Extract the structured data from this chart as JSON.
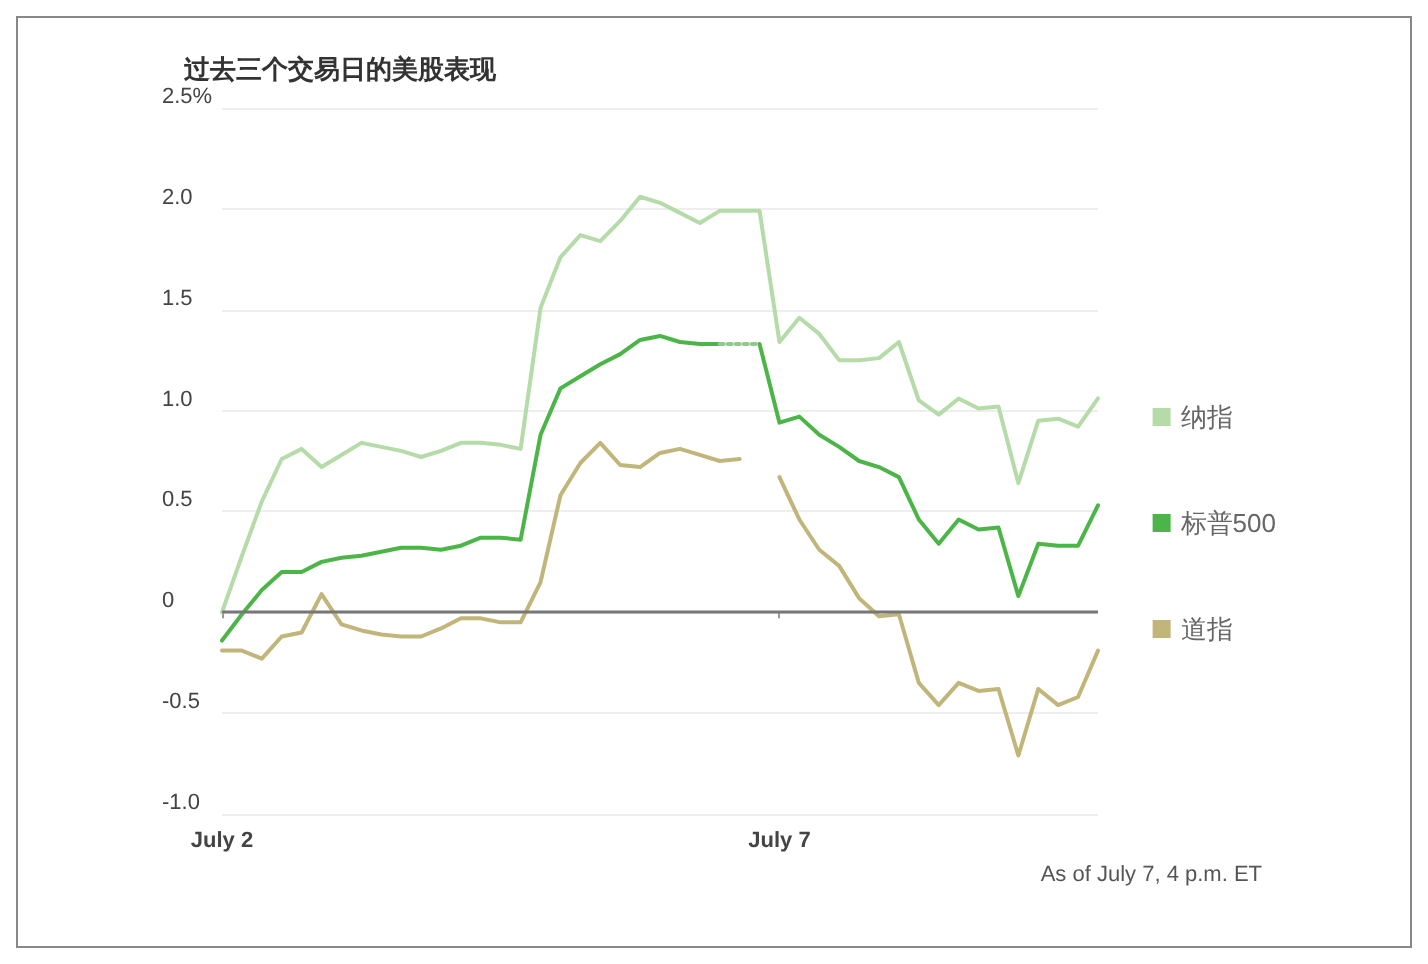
{
  "chart_data": {
    "type": "line",
    "title": "过去三个交易日的美股表现",
    "annotations": [
      "As of July 7, 4 p.m. ET"
    ],
    "categories": [
      "July 2",
      null,
      null,
      null,
      null,
      null,
      null,
      null,
      null,
      null,
      null,
      null,
      null,
      null,
      null,
      null,
      null,
      null,
      null,
      null,
      null,
      null,
      null,
      null,
      null,
      null,
      null,
      null,
      "July 7",
      null,
      null,
      null,
      null,
      null,
      null,
      null,
      null,
      null,
      null,
      null,
      null,
      null,
      null,
      null,
      null
    ],
    "ylim": [
      -1.0,
      2.5
    ],
    "yticks": [
      {
        "value": 2.5,
        "label": "2.5%"
      },
      {
        "value": 2.0,
        "label": "2.0"
      },
      {
        "value": 1.5,
        "label": "1.5"
      },
      {
        "value": 1.0,
        "label": "1.0"
      },
      {
        "value": 0.5,
        "label": "0.5"
      },
      {
        "value": 0,
        "label": "0"
      },
      {
        "value": -0.5,
        "label": "-0.5"
      },
      {
        "value": -1.0,
        "label": "-1.0"
      }
    ],
    "grid": "y",
    "legend": "right",
    "marker": "none",
    "line_style": "solid",
    "ref_lines": [
      {
        "axis": "y",
        "value": 0,
        "label": null,
        "color": "#777777"
      }
    ],
    "series": [
      {
        "name": "纳指",
        "color": "#b5dba8",
        "values": [
          0,
          0.28,
          0.55,
          0.76,
          0.81,
          0.72,
          0.78,
          0.84,
          0.82,
          0.8,
          0.77,
          0.8,
          0.84,
          0.84,
          0.83,
          0.81,
          1.51,
          1.76,
          1.87,
          1.84,
          1.94,
          2.06,
          2.03,
          1.98,
          1.93,
          1.99,
          1.99,
          1.99,
          1.34,
          1.46,
          1.38,
          1.25,
          1.25,
          1.26,
          1.34,
          1.05,
          0.98,
          1.06,
          1.01,
          1.02,
          0.64,
          0.95,
          0.96,
          0.92,
          1.06
        ]
      },
      {
        "name": "标普500",
        "color": "#4cb548",
        "values": [
          -0.14,
          -0.01,
          0.11,
          0.2,
          0.2,
          0.25,
          0.27,
          0.28,
          0.3,
          0.32,
          0.32,
          0.31,
          0.33,
          0.37,
          0.37,
          0.36,
          0.88,
          1.11,
          1.17,
          1.23,
          1.28,
          1.35,
          1.37,
          1.34,
          1.33,
          1.33,
          null,
          1.33,
          0.94,
          0.97,
          0.88,
          0.82,
          0.75,
          0.72,
          0.67,
          0.46,
          0.34,
          0.46,
          0.41,
          0.42,
          0.08,
          0.34,
          0.33,
          0.33,
          0.53
        ]
      },
      {
        "color": "#8fc98c",
        "line_style": "dotted",
        "values": [
          null,
          null,
          null,
          null,
          null,
          null,
          null,
          null,
          null,
          null,
          null,
          null,
          null,
          null,
          null,
          null,
          null,
          null,
          null,
          null,
          null,
          null,
          null,
          null,
          null,
          1.33,
          1.33,
          1.33,
          null,
          null,
          null,
          null,
          null,
          null,
          null,
          null,
          null,
          null,
          null,
          null,
          null,
          null,
          null,
          null,
          null
        ]
      },
      {
        "name": "道指",
        "color": "#c2b57a",
        "values": [
          -0.19,
          -0.19,
          -0.23,
          -0.12,
          -0.1,
          0.09,
          -0.06,
          -0.09,
          -0.11,
          -0.12,
          -0.12,
          -0.08,
          -0.03,
          -0.03,
          -0.05,
          -0.05,
          0.15,
          0.58,
          0.74,
          0.84,
          0.73,
          0.72,
          0.79,
          0.81,
          0.78,
          0.75,
          0.76,
          null,
          0.67,
          0.46,
          0.31,
          0.23,
          0.07,
          -0.02,
          -0.01,
          -0.35,
          -0.46,
          -0.35,
          -0.39,
          -0.38,
          -0.71,
          -0.38,
          -0.46,
          -0.42,
          -0.19
        ]
      }
    ]
  }
}
